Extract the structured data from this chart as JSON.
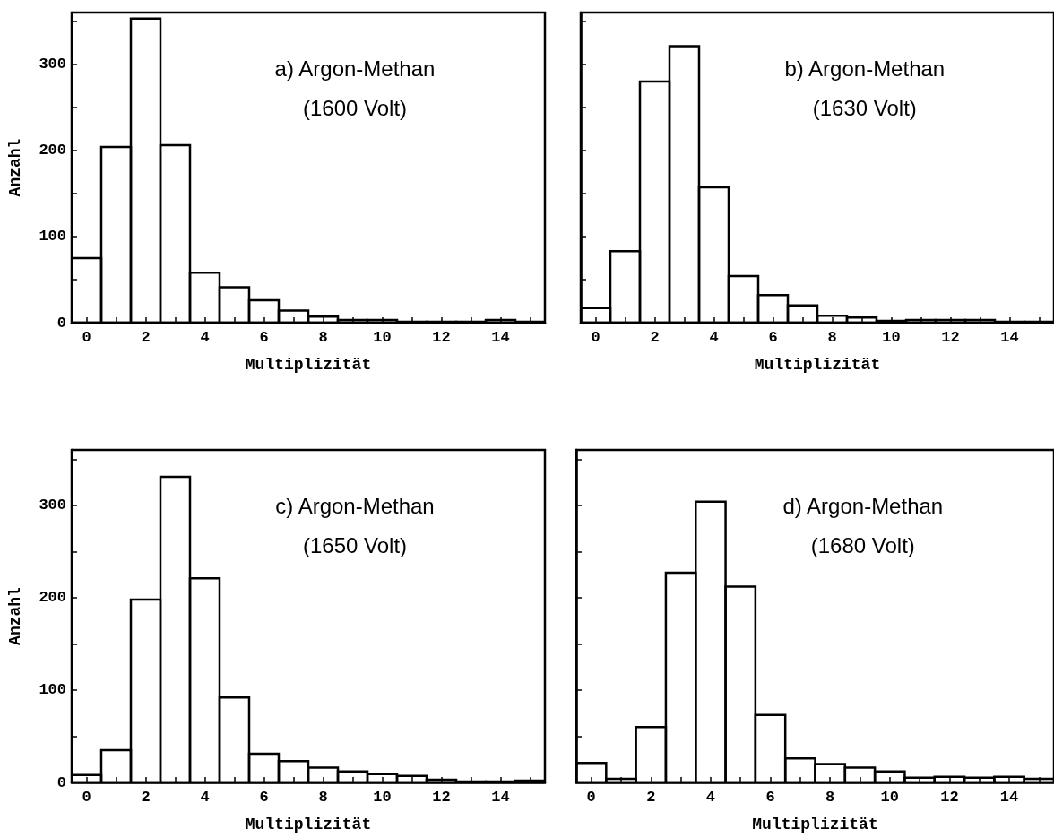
{
  "chart_data": [
    {
      "type": "histogram",
      "xlabel": "Multiplizität",
      "ylabel": "Anzahl",
      "annotations": [
        "a) Argon-Methan",
        "(1600 Volt)"
      ],
      "color": "#000000",
      "bins": [
        -0.5,
        0.5,
        1.5,
        2.5,
        3.5,
        4.5,
        5.5,
        6.5,
        7.5,
        8.5,
        9.5,
        10.5,
        11.5,
        12.5,
        13.5,
        14.5,
        15.5
      ],
      "values": [
        75,
        204,
        353,
        206,
        58,
        41,
        26,
        14,
        7,
        3,
        3,
        1,
        1,
        1,
        3,
        1
      ],
      "xlim": [
        -0.5,
        15.5
      ],
      "xticks": [
        0,
        {
          "value": 1,
          "label": null
        },
        2,
        {
          "value": 3,
          "label": null
        },
        4,
        {
          "value": 5,
          "label": null
        },
        6,
        {
          "value": 7,
          "label": null
        },
        8,
        {
          "value": 9,
          "label": null
        },
        10,
        {
          "value": 11,
          "label": null
        },
        12,
        {
          "value": 13,
          "label": null
        },
        14,
        {
          "value": 15,
          "label": null
        }
      ],
      "ylim": [
        0,
        360
      ],
      "yticks": [
        0,
        {
          "value": 50,
          "label": null
        },
        100,
        {
          "value": 150,
          "label": null
        },
        200,
        {
          "value": 250,
          "label": null
        },
        300,
        {
          "value": 350,
          "label": null
        }
      ],
      "grid": false
    },
    {
      "type": "histogram",
      "xlabel": "Multiplizität",
      "annotations": [
        "b) Argon-Methan",
        "(1630 Volt)"
      ],
      "color": "#000000",
      "tick_labels": "x",
      "bins": [
        -0.5,
        0.5,
        1.5,
        2.5,
        3.5,
        4.5,
        5.5,
        6.5,
        7.5,
        8.5,
        9.5,
        10.5,
        11.5,
        12.5,
        13.5,
        14.5,
        15.5
      ],
      "values": [
        17,
        83,
        280,
        321,
        157,
        54,
        32,
        20,
        8,
        6,
        2,
        3,
        3,
        3,
        1,
        1
      ],
      "xlim": [
        -0.5,
        15.5
      ],
      "xticks": [
        0,
        {
          "value": 1,
          "label": null
        },
        2,
        {
          "value": 3,
          "label": null
        },
        4,
        {
          "value": 5,
          "label": null
        },
        6,
        {
          "value": 7,
          "label": null
        },
        8,
        {
          "value": 9,
          "label": null
        },
        10,
        {
          "value": 11,
          "label": null
        },
        12,
        {
          "value": 13,
          "label": null
        },
        14,
        {
          "value": 15,
          "label": null
        }
      ],
      "ylim": [
        0,
        360
      ],
      "yticks": [
        0,
        {
          "value": 50,
          "label": null
        },
        100,
        {
          "value": 150,
          "label": null
        },
        200,
        {
          "value": 250,
          "label": null
        },
        300,
        {
          "value": 350,
          "label": null
        }
      ],
      "grid": false
    },
    {
      "type": "histogram",
      "xlabel": "Multiplizität",
      "ylabel": "Anzahl",
      "annotations": [
        "c) Argon-Methan",
        "(1650 Volt)"
      ],
      "color": "#000000",
      "bins": [
        -0.5,
        0.5,
        1.5,
        2.5,
        3.5,
        4.5,
        5.5,
        6.5,
        7.5,
        8.5,
        9.5,
        10.5,
        11.5,
        12.5,
        13.5,
        14.5,
        15.5
      ],
      "values": [
        8,
        35,
        198,
        331,
        221,
        92,
        31,
        23,
        16,
        12,
        9,
        7,
        3,
        1,
        1,
        2
      ],
      "xlim": [
        -0.5,
        15.5
      ],
      "xticks": [
        0,
        {
          "value": 1,
          "label": null
        },
        2,
        {
          "value": 3,
          "label": null
        },
        4,
        {
          "value": 5,
          "label": null
        },
        6,
        {
          "value": 7,
          "label": null
        },
        8,
        {
          "value": 9,
          "label": null
        },
        10,
        {
          "value": 11,
          "label": null
        },
        12,
        {
          "value": 13,
          "label": null
        },
        14,
        {
          "value": 15,
          "label": null
        }
      ],
      "ylim": [
        0,
        360
      ],
      "yticks": [
        0,
        {
          "value": 50,
          "label": null
        },
        100,
        {
          "value": 150,
          "label": null
        },
        200,
        {
          "value": 250,
          "label": null
        },
        300,
        {
          "value": 350,
          "label": null
        }
      ],
      "grid": false
    },
    {
      "type": "histogram",
      "xlabel": "Multiplizität",
      "annotations": [
        "d) Argon-Methan",
        "(1680 Volt)"
      ],
      "color": "#000000",
      "tick_labels": "x",
      "bins": [
        -0.5,
        0.5,
        1.5,
        2.5,
        3.5,
        4.5,
        5.5,
        6.5,
        7.5,
        8.5,
        9.5,
        10.5,
        11.5,
        12.5,
        13.5,
        14.5,
        15.5
      ],
      "values": [
        21,
        4,
        60,
        227,
        304,
        212,
        73,
        26,
        20,
        16,
        12,
        5,
        6,
        5,
        6,
        4
      ],
      "xlim": [
        -0.5,
        15.5
      ],
      "xticks": [
        0,
        {
          "value": 1,
          "label": null
        },
        2,
        {
          "value": 3,
          "label": null
        },
        4,
        {
          "value": 5,
          "label": null
        },
        6,
        {
          "value": 7,
          "label": null
        },
        8,
        {
          "value": 9,
          "label": null
        },
        10,
        {
          "value": 11,
          "label": null
        },
        12,
        {
          "value": 13,
          "label": null
        },
        14,
        {
          "value": 15,
          "label": null
        }
      ],
      "ylim": [
        0,
        360
      ],
      "yticks": [
        0,
        {
          "value": 50,
          "label": null
        },
        100,
        {
          "value": 150,
          "label": null
        },
        200,
        {
          "value": 250,
          "label": null
        },
        300,
        {
          "value": 350,
          "label": null
        }
      ],
      "grid": false
    }
  ]
}
